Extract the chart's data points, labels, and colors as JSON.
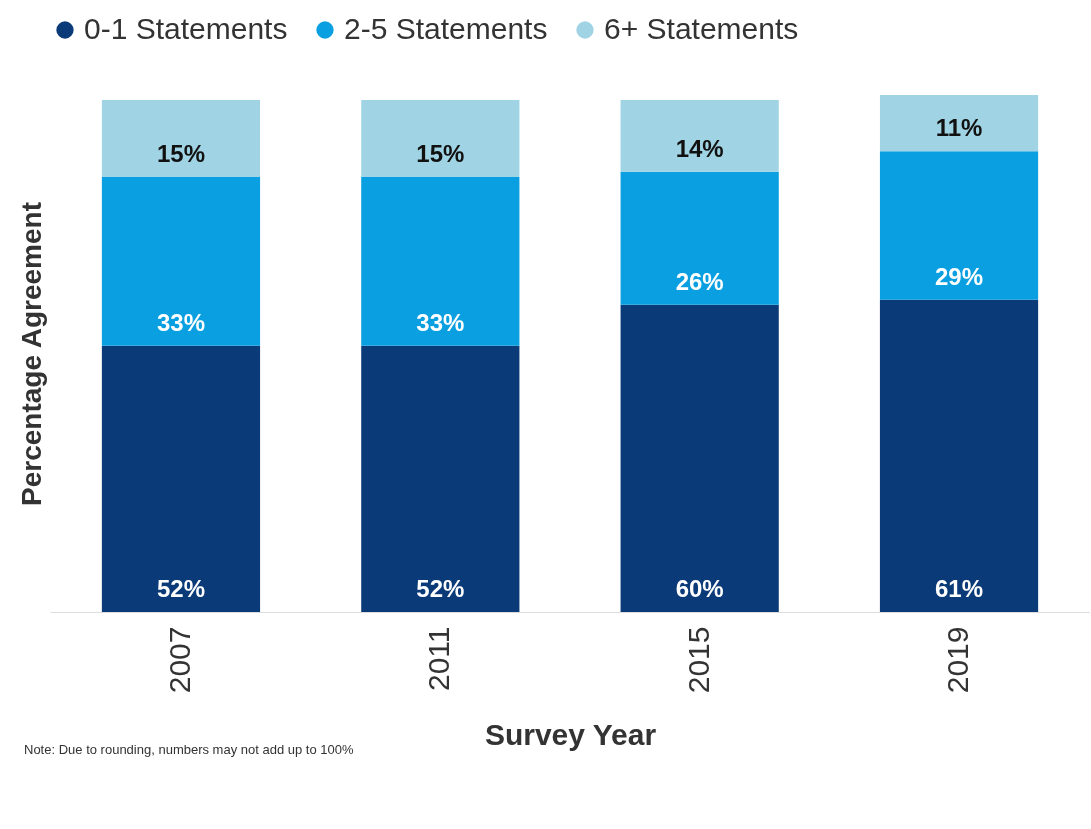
{
  "chart_data": {
    "type": "bar",
    "stacked": true,
    "xlabel": "Survey Year",
    "ylabel": "Percentage Agreement",
    "categories": [
      "2007",
      "2011",
      "2015",
      "2019"
    ],
    "series": [
      {
        "name": "0-1 Statements",
        "color": "#0b3a78",
        "values": [
          52,
          52,
          60,
          61
        ],
        "value_labels": [
          "52%",
          "52%",
          "60%",
          "61%"
        ]
      },
      {
        "name": "2-5 Statements",
        "color": "#0a9fe0",
        "values": [
          33,
          33,
          26,
          29
        ],
        "value_labels": [
          "33%",
          "33%",
          "26%",
          "29%"
        ]
      },
      {
        "name": "6+ Statements",
        "color": "#a0d4e4",
        "values": [
          15,
          15,
          14,
          11
        ],
        "value_labels": [
          "15%",
          "15%",
          "14%",
          "11%"
        ]
      }
    ],
    "tick_labels": "x",
    "legend": "top",
    "grid": false,
    "annotations": [
      "Note: Due to rounding, numbers may not add up to 100%"
    ]
  }
}
